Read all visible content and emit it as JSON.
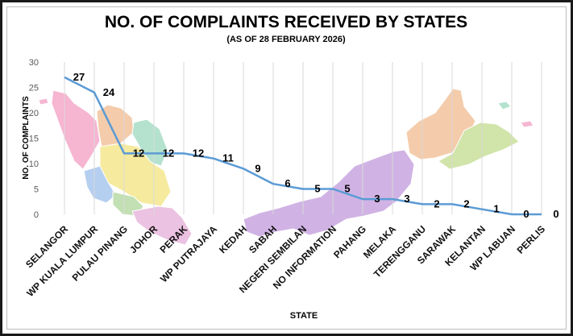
{
  "chart_data": {
    "type": "line",
    "title": "NO. OF COMPLAINTS RECEIVED BY STATES",
    "subtitle": "(AS OF 28 FEBRUARY 2026)",
    "xlabel": "STATE",
    "ylabel": "NO. OF COMPLAINTS",
    "ylim": [
      0,
      30
    ],
    "yticks": [
      0,
      5,
      10,
      15,
      20,
      25,
      30
    ],
    "categories": [
      "SELANGOR",
      "WP KUALA LUMPUR",
      "PULAU PINANG",
      "JOHOR",
      "PERAK",
      "WP PUTRAJAYA",
      "KEDAH",
      "SABAH",
      "NEGERI SEMBILAN",
      "NO INFORMATION",
      "PAHANG",
      "MELAKA",
      "TERENGGANU",
      "SARAWAK",
      "KELANTAN",
      "WP LABUAN",
      "PERLIS"
    ],
    "series": [
      {
        "name": "Complaints",
        "values": [
          27,
          24,
          12,
          12,
          12,
          11,
          9,
          6,
          5,
          5,
          3,
          3,
          2,
          2,
          1,
          0,
          0
        ]
      }
    ],
    "data_labels": [
      "27",
      "24",
      "12",
      "12",
      "12",
      "11",
      "9",
      "6",
      "5",
      "5",
      "3",
      "3",
      "2",
      "2",
      "1",
      "0",
      "0"
    ],
    "grid": "vertical",
    "legend": "none",
    "colors": {
      "line": "#5b9bd5",
      "gridline": "#d9d9d9",
      "text": "#000000",
      "axis_text": "#595959"
    }
  },
  "background_map": {
    "region_colors": [
      "#f5a9c9",
      "#f3c49d",
      "#f4e78e",
      "#a9c7ee",
      "#b8dba6",
      "#a8dec6",
      "#e8b8dc",
      "#c8a6e0",
      "#f4b9a0",
      "#c9e09b"
    ]
  }
}
